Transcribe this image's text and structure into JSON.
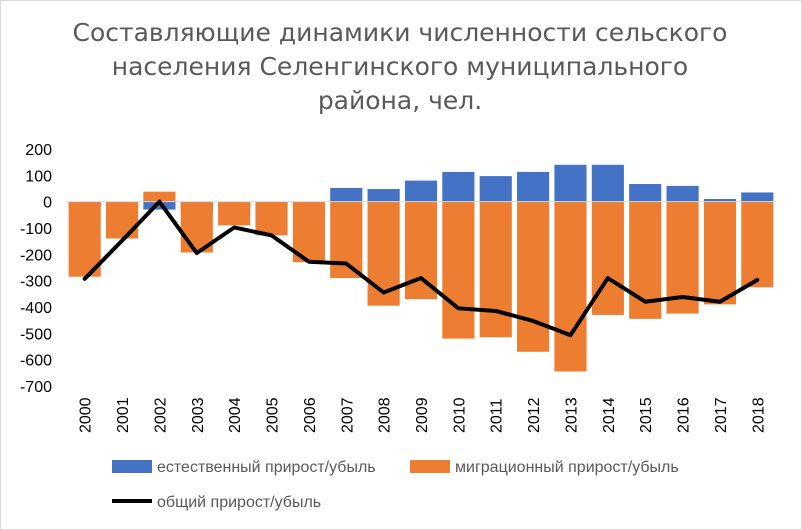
{
  "chart_data": {
    "type": "bar",
    "title_lines": [
      "Составляющие динамики численности сельского",
      "населения Селенгинского муниципального",
      "района, чел."
    ],
    "categories": [
      "2000",
      "2001",
      "2002",
      "2003",
      "2004",
      "2005",
      "2006",
      "2007",
      "2008",
      "2009",
      "2010",
      "2011",
      "2012",
      "2013",
      "2014",
      "2015",
      "2016",
      "2017",
      "2018"
    ],
    "series": [
      {
        "name": "естественный прирост/убыль",
        "kind": "bar",
        "color": "#4472c4",
        "values": [
          -18,
          -50,
          -30,
          -37,
          -37,
          -16,
          0,
          52,
          48,
          80,
          113,
          97,
          113,
          140,
          140,
          67,
          60,
          10,
          35
        ]
      },
      {
        "name": "миграционный прирост/убыль",
        "kind": "bar",
        "color": "#ed7d31",
        "values": [
          -285,
          -140,
          38,
          -193,
          -90,
          -128,
          -230,
          -290,
          -395,
          -370,
          -520,
          -515,
          -570,
          -645,
          -430,
          -445,
          -425,
          -390,
          -325
        ]
      },
      {
        "name": "общий прирост/убыль",
        "kind": "line",
        "color": "#000000",
        "values": [
          -293,
          -148,
          0,
          -195,
          -98,
          -128,
          -228,
          -235,
          -345,
          -290,
          -405,
          -415,
          -453,
          -507,
          -290,
          -380,
          -362,
          -380,
          -297
        ]
      }
    ],
    "ylim": [
      -700,
      200
    ],
    "yticks": [
      200,
      100,
      0,
      -100,
      -200,
      -300,
      -400,
      -500,
      -600,
      -700
    ],
    "bar_mode": "overlap",
    "grid": false,
    "legend_position": "bottom"
  }
}
